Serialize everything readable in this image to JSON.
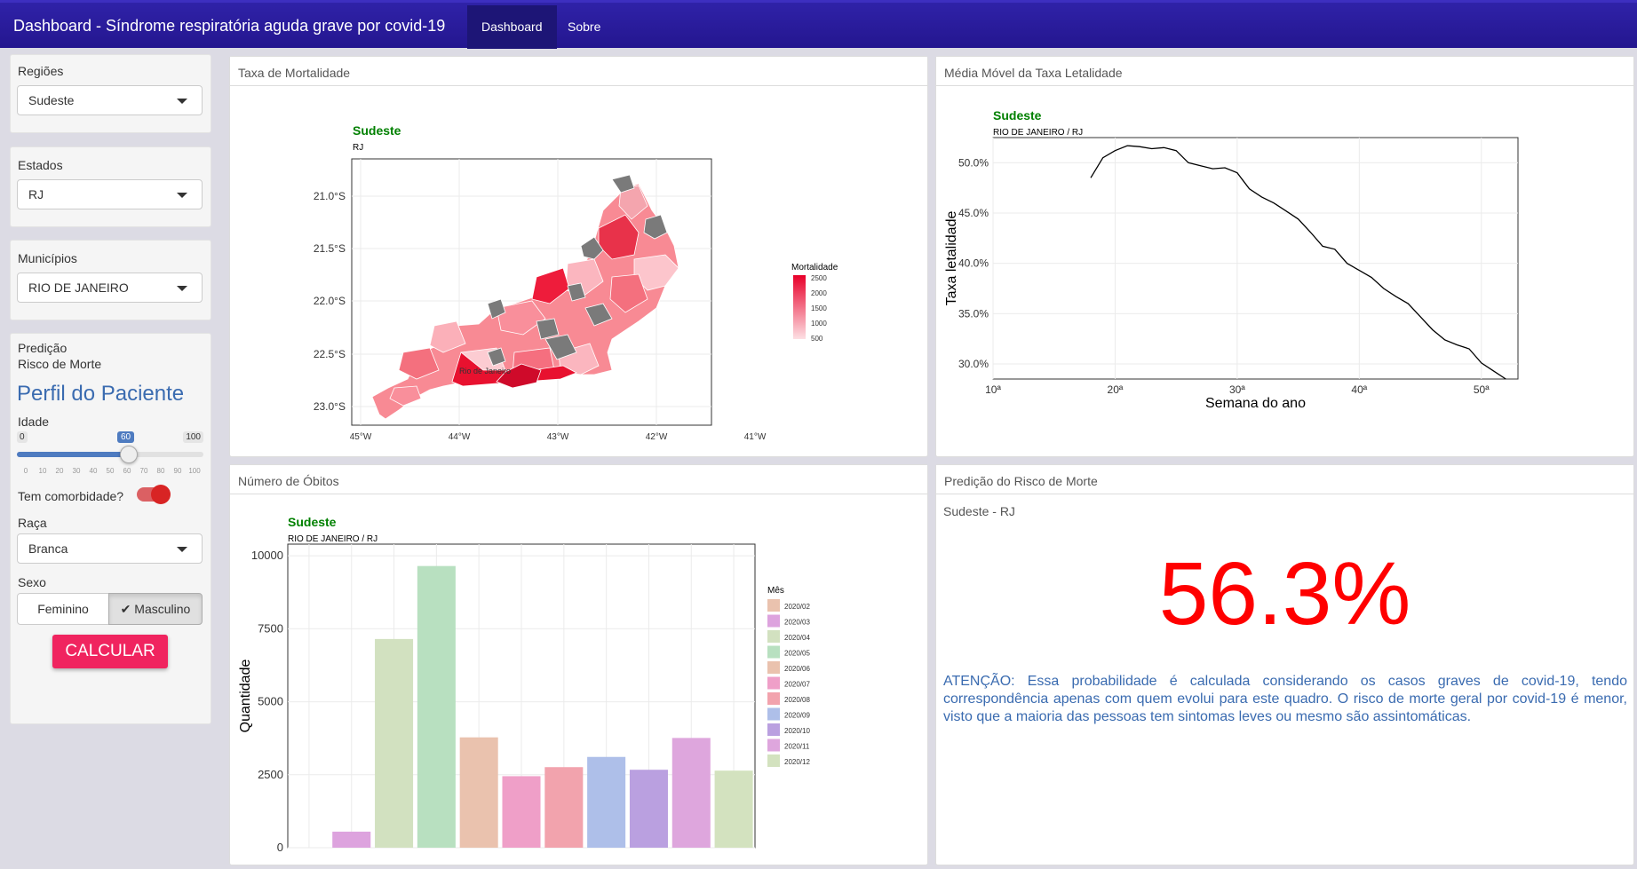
{
  "navbar": {
    "title": "Dashboard - Síndrome respiratória aguda grave por covid-19",
    "tabs": [
      "Dashboard",
      "Sobre"
    ]
  },
  "sidebar": {
    "regioes_label": "Regiões",
    "regioes_value": "Sudeste",
    "estados_label": "Estados",
    "estados_value": "RJ",
    "municipios_label": "Municípios",
    "municipios_value": "RIO DE JANEIRO",
    "predicao_line1": "Predição",
    "predicao_line2": "Risco de Morte",
    "perfil_title": "Perfil do Paciente",
    "idade_label": "Idade",
    "idade_min": "0",
    "idade_max": "100",
    "idade_value": "60",
    "idade_fraction": 0.6,
    "idade_ticks": [
      "0",
      "10",
      "20",
      "30",
      "40",
      "50",
      "60",
      "70",
      "80",
      "90",
      "100"
    ],
    "comorbidade_label": "Tem comorbidade?",
    "comorbidade_on": true,
    "raca_label": "Raça",
    "raca_value": "Branca",
    "sexo_label": "Sexo",
    "sexo_options": [
      "Feminino",
      "Masculino"
    ],
    "sexo_selected": "Masculino",
    "calcular_label": "CALCULAR"
  },
  "panels": {
    "mortalidade": {
      "title": "Taxa de Mortalidade",
      "plot_title": "Sudeste",
      "plot_subtitle": "RJ",
      "legend_title": "Mortalidade",
      "legend_values": [
        "2500",
        "2000",
        "1500",
        "1000",
        "500"
      ],
      "lat_ticks": [
        "21.0°S",
        "21.5°S",
        "22.0°S",
        "22.5°S",
        "23.0°S"
      ],
      "lon_ticks": [
        "45°W",
        "44°W",
        "43°W",
        "42°W",
        "41°W"
      ],
      "map_label": "Rio de Janeiro"
    },
    "letalidade": {
      "title": "Média Móvel da Taxa Letalidade"
    },
    "obitos": {
      "title": "Número de Óbitos"
    },
    "risco": {
      "title": "Predição do Risco de Morte",
      "subtitle": "Sudeste - RJ",
      "value": "56.3%",
      "warning": "ATENÇÃO: Essa probabilidade é calculada considerando os casos graves de covid-19, tendo correspondência apenas com quem evolui para este quadro. O risco de morte geral por covid-19 é menor, visto que a maioria das pessoas tem sintomas leves ou mesmo são assintomáticas."
    }
  },
  "chart_data": [
    {
      "type": "line",
      "title": "Sudeste",
      "subtitle": "RIO DE JANEIRO / RJ",
      "xlabel": "Semana do ano",
      "ylabel": "Taxa letalidade",
      "xlim": [
        10,
        53
      ],
      "ylim": [
        28.5,
        52.5
      ],
      "x_ticks": [
        "10ª",
        "20ª",
        "30ª",
        "40ª",
        "50ª"
      ],
      "y_ticks": [
        "30.0%",
        "35.0%",
        "40.0%",
        "45.0%",
        "50.0%"
      ],
      "grid": true,
      "x": [
        18,
        19,
        20,
        21,
        22,
        23,
        24,
        25,
        26,
        27,
        28,
        29,
        30,
        31,
        32,
        33,
        34,
        35,
        36,
        37,
        38,
        39,
        40,
        41,
        42,
        43,
        44,
        45,
        46,
        47,
        48,
        49,
        50,
        51,
        52
      ],
      "y": [
        48.5,
        50.5,
        51.2,
        51.7,
        51.6,
        51.4,
        51.5,
        51.2,
        50.0,
        49.7,
        49.4,
        49.5,
        49.0,
        47.4,
        46.6,
        46.0,
        45.2,
        44.4,
        43.1,
        41.7,
        41.4,
        40.0,
        39.3,
        38.6,
        37.5,
        36.7,
        36.0,
        34.7,
        33.4,
        32.4,
        31.9,
        31.5,
        30.1,
        29.3,
        28.5
      ]
    },
    {
      "type": "bar",
      "title": "Sudeste",
      "subtitle": "RIO DE JANEIRO / RJ",
      "ylabel": "Quantidade",
      "ylim": [
        0,
        10400
      ],
      "y_ticks": [
        "0",
        "2500",
        "5000",
        "7500",
        "10000"
      ],
      "legend_title": "Mês",
      "legend_position": "right",
      "categories": [
        "2020/03",
        "2020/04",
        "2020/05",
        "2020/06",
        "2020/07",
        "2020/08",
        "2020/09",
        "2020/10",
        "2020/11",
        "2020/12"
      ],
      "values": [
        550,
        7150,
        9650,
        3780,
        2450,
        2760,
        3110,
        2670,
        3760,
        2640
      ],
      "colors": [
        "#dda3de",
        "#d2e1c0",
        "#b8e0c0",
        "#eac2ae",
        "#ef9fc8",
        "#f2a3ad",
        "#aebfe9",
        "#baa0e0",
        "#dea6dd",
        "#d3e2bf"
      ],
      "legend_entries": [
        "2020/02",
        "2020/03",
        "2020/04",
        "2020/05",
        "2020/06",
        "2020/07",
        "2020/08",
        "2020/09",
        "2020/10",
        "2020/11",
        "2020/12"
      ],
      "legend_colors": [
        "#eac2ae",
        "#dda3de",
        "#d2e1c0",
        "#b8e0c0",
        "#eac2ae",
        "#ef9fc8",
        "#f2a3ad",
        "#aebfe9",
        "#baa0e0",
        "#dea6dd",
        "#d3e2bf"
      ]
    }
  ]
}
